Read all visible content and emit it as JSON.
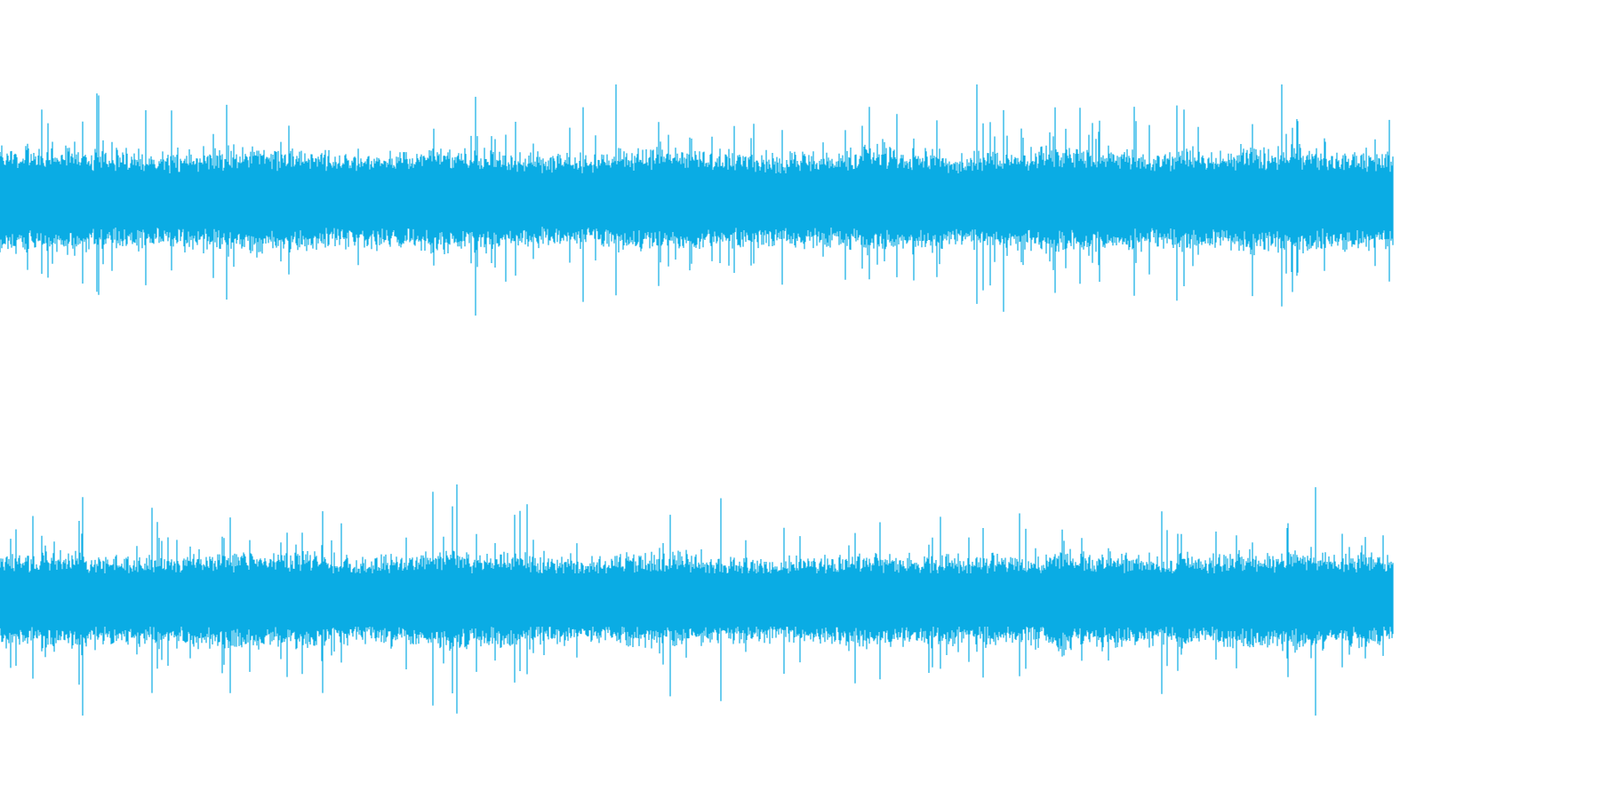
{
  "waveform": {
    "color": "#0aace4",
    "background": "#ffffff",
    "channels": [
      {
        "id": "channel-1",
        "seed": 7,
        "gain": 1.0
      },
      {
        "id": "channel-2",
        "seed": 19,
        "gain": 0.92
      }
    ]
  }
}
